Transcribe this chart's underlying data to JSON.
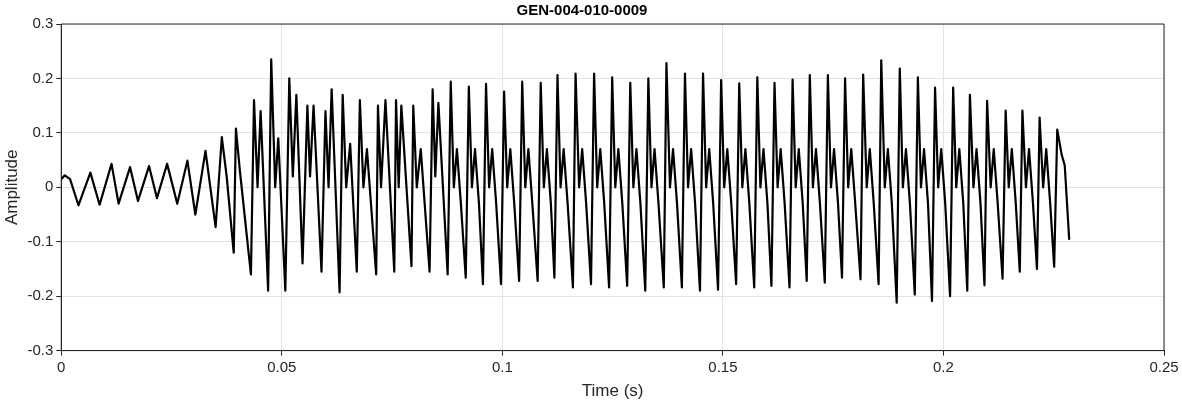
{
  "chart_data": {
    "type": "line",
    "title": "GEN-004-010-0009",
    "xlabel": "Time (s)",
    "ylabel": "Amplitude",
    "xlim": [
      0,
      0.25
    ],
    "xticks": [
      0,
      0.05,
      0.1,
      0.15,
      0.2,
      0.25
    ],
    "ylim": [
      -0.3,
      0.3
    ],
    "yticks": [
      -0.3,
      -0.2,
      -0.1,
      0,
      0.1,
      0.2,
      0.3
    ],
    "grid": true,
    "marker": "none",
    "line_style": "solid",
    "series": [
      {
        "color": "#000000",
        "x": [
          0,
          0.0008,
          0.002,
          0.0039,
          0.0066,
          0.0087,
          0.0114,
          0.013,
          0.0156,
          0.0174,
          0.0199,
          0.0217,
          0.024,
          0.0263,
          0.0286,
          0.0304,
          0.0327,
          0.035,
          0.0364,
          0.0375,
          0.0391,
          0.0396,
          0.0405,
          0.043,
          0.0437,
          0.0445,
          0.0452,
          0.0469,
          0.0476,
          0.0485,
          0.0492,
          0.0508,
          0.0517,
          0.0525,
          0.0533,
          0.0547,
          0.0558,
          0.0564,
          0.0572,
          0.059,
          0.0599,
          0.0606,
          0.0613,
          0.0631,
          0.0638,
          0.0646,
          0.0655,
          0.067,
          0.0677,
          0.0685,
          0.0693,
          0.0714,
          0.0718,
          0.0725,
          0.0735,
          0.0755,
          0.0759,
          0.0765,
          0.0771,
          0.0794,
          0.0798,
          0.0806,
          0.0815,
          0.0835,
          0.0842,
          0.0848,
          0.0855,
          0.0876,
          0.0883,
          0.089,
          0.0897,
          0.0906,
          0.0917,
          0.0924,
          0.0931,
          0.0938,
          0.0947,
          0.0956,
          0.0963,
          0.097,
          0.0977,
          0.0986,
          0.0997,
          0.1004,
          0.1011,
          0.1018,
          0.1027,
          0.1038,
          0.1045,
          0.1052,
          0.1059,
          0.1068,
          0.108,
          0.1087,
          0.1094,
          0.1101,
          0.111,
          0.1118,
          0.1125,
          0.1132,
          0.1139,
          0.1148,
          0.116,
          0.1166,
          0.1174,
          0.1181,
          0.119,
          0.1201,
          0.1208,
          0.1215,
          0.1222,
          0.1231,
          0.1242,
          0.1249,
          0.1256,
          0.1263,
          0.1272,
          0.1283,
          0.129,
          0.1297,
          0.1304,
          0.1313,
          0.1324,
          0.1331,
          0.1338,
          0.1345,
          0.1354,
          0.1366,
          0.1372,
          0.138,
          0.1387,
          0.1396,
          0.1407,
          0.1414,
          0.1421,
          0.1428,
          0.1437,
          0.1448,
          0.1455,
          0.1462,
          0.1469,
          0.1478,
          0.1489,
          0.1496,
          0.1503,
          0.151,
          0.1519,
          0.153,
          0.1537,
          0.1544,
          0.1551,
          0.156,
          0.1571,
          0.1578,
          0.1585,
          0.1592,
          0.1601,
          0.161,
          0.1617,
          0.1624,
          0.1631,
          0.164,
          0.1651,
          0.1658,
          0.1665,
          0.1672,
          0.1681,
          0.169,
          0.1697,
          0.1704,
          0.1711,
          0.172,
          0.1731,
          0.1738,
          0.1745,
          0.1752,
          0.1761,
          0.177,
          0.1777,
          0.1784,
          0.1791,
          0.18,
          0.1812,
          0.1818,
          0.1826,
          0.1833,
          0.1842,
          0.1853,
          0.1859,
          0.1867,
          0.1874,
          0.1883,
          0.1894,
          0.1901,
          0.1908,
          0.1915,
          0.1924,
          0.1935,
          0.1942,
          0.1949,
          0.1956,
          0.1965,
          0.1974,
          0.1981,
          0.1988,
          0.1995,
          0.2004,
          0.2015,
          0.2022,
          0.2029,
          0.2036,
          0.2045,
          0.2054,
          0.206,
          0.2068,
          0.2075,
          0.2084,
          0.2093,
          0.2099,
          0.2107,
          0.2114,
          0.2123,
          0.2134,
          0.2141,
          0.2148,
          0.2155,
          0.2164,
          0.2173,
          0.2179,
          0.2187,
          0.2194,
          0.2203,
          0.2212,
          0.2218,
          0.2226,
          0.2233,
          0.2242,
          0.2251,
          0.2258,
          0.2268,
          0.2275,
          0.2285
        ],
        "values": [
          0.015,
          0.022,
          0.015,
          -0.033,
          0.027,
          -0.032,
          0.043,
          -0.03,
          0.037,
          -0.025,
          0.039,
          -0.02,
          0.043,
          -0.03,
          0.049,
          -0.05,
          0.067,
          -0.073,
          0.092,
          0.02,
          -0.12,
          0.108,
          0.03,
          -0.16,
          0.16,
          0,
          0.14,
          -0.19,
          0.235,
          0,
          0.09,
          -0.19,
          0.2,
          0.02,
          0.17,
          -0.14,
          0.15,
          0.02,
          0.15,
          -0.155,
          0.14,
          0,
          0.18,
          -0.193,
          0.17,
          0,
          0.08,
          -0.155,
          0.16,
          0,
          0.07,
          -0.16,
          0.15,
          0,
          0.16,
          -0.155,
          0.16,
          0,
          0.15,
          -0.145,
          0.15,
          0,
          0.07,
          -0.155,
          0.18,
          0.02,
          0.155,
          -0.16,
          0.194,
          0,
          0.07,
          -0.03,
          -0.166,
          0.185,
          0,
          0.07,
          -0.03,
          -0.178,
          0.19,
          0,
          0.07,
          -0.03,
          -0.178,
          0.176,
          0,
          0.07,
          -0.03,
          -0.172,
          0.194,
          0,
          0.07,
          -0.03,
          -0.172,
          0.192,
          0,
          0.07,
          -0.03,
          -0.166,
          0.206,
          0,
          0.07,
          -0.03,
          -0.184,
          0.209,
          0,
          0.07,
          -0.03,
          -0.178,
          0.209,
          0,
          0.07,
          -0.03,
          -0.184,
          0.202,
          0,
          0.07,
          -0.03,
          -0.181,
          0.192,
          0,
          0.07,
          -0.03,
          -0.19,
          0.2,
          0,
          0.07,
          -0.03,
          -0.184,
          0.228,
          0,
          0.07,
          -0.03,
          -0.184,
          0.209,
          0,
          0.07,
          -0.03,
          -0.19,
          0.209,
          0,
          0.07,
          -0.03,
          -0.188,
          0.197,
          0,
          0.07,
          -0.03,
          -0.178,
          0.191,
          0,
          0.07,
          -0.03,
          -0.184,
          0.202,
          0,
          0.07,
          -0.03,
          -0.181,
          0.192,
          0,
          0.07,
          -0.03,
          -0.184,
          0.198,
          0,
          0.07,
          -0.03,
          -0.172,
          0.206,
          0,
          0.07,
          -0.03,
          -0.175,
          0.206,
          0,
          0.07,
          -0.03,
          -0.166,
          0.2,
          0,
          0.07,
          -0.03,
          -0.169,
          0.207,
          0,
          0.07,
          -0.03,
          -0.178,
          0.233,
          0,
          0.07,
          -0.03,
          -0.212,
          0.218,
          0,
          0.07,
          -0.03,
          -0.197,
          0.202,
          0,
          0.07,
          -0.03,
          -0.209,
          0.183,
          0,
          0.07,
          -0.03,
          -0.2,
          0.183,
          0,
          0.07,
          -0.03,
          -0.19,
          0.17,
          0,
          0.07,
          -0.03,
          -0.18,
          0.159,
          0,
          0.07,
          -0.03,
          -0.168,
          0.141,
          0,
          0.07,
          -0.03,
          -0.155,
          0.141,
          0,
          0.07,
          -0.03,
          -0.15,
          0.128,
          0,
          0.07,
          -0.03,
          -0.146,
          0.106,
          0.06,
          0.04,
          -0.095
        ]
      }
    ]
  }
}
